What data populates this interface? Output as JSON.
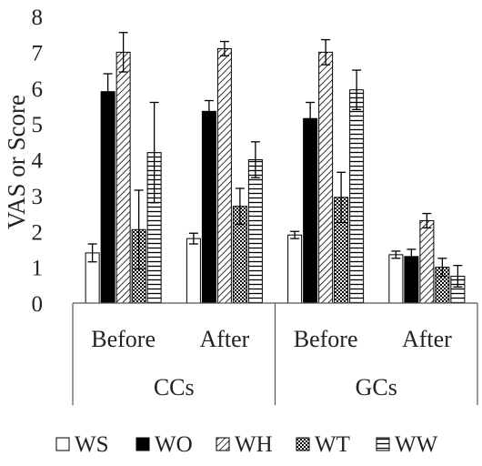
{
  "chart_data": {
    "type": "bar",
    "ylabel": "VAS or Score",
    "ylim": [
      0,
      8
    ],
    "yticks": [
      0,
      1,
      2,
      3,
      4,
      5,
      6,
      7,
      8
    ],
    "grid": false,
    "legend_position": "bottom",
    "groups": [
      {
        "label": "CCs",
        "categories": [
          "Before",
          "After"
        ]
      },
      {
        "label": "GCs",
        "categories": [
          "Before",
          "After"
        ]
      }
    ],
    "categories": [
      "Before",
      "After",
      "Before",
      "After"
    ],
    "series": [
      {
        "name": "WS",
        "pattern": "white",
        "values": [
          1.4,
          1.8,
          1.9,
          1.35
        ],
        "errors": [
          0.25,
          0.15,
          0.1,
          0.1
        ]
      },
      {
        "name": "WO",
        "pattern": "black",
        "values": [
          5.9,
          5.35,
          5.15,
          1.3
        ],
        "errors": [
          0.5,
          0.3,
          0.45,
          0.2
        ]
      },
      {
        "name": "WH",
        "pattern": "diagonal",
        "values": [
          7.0,
          7.1,
          7.0,
          2.3
        ],
        "errors": [
          0.55,
          0.2,
          0.35,
          0.2
        ]
      },
      {
        "name": "WT",
        "pattern": "crosshatch",
        "values": [
          2.05,
          2.7,
          2.95,
          1.0
        ],
        "errors": [
          1.1,
          0.5,
          0.7,
          0.25
        ]
      },
      {
        "name": "WW",
        "pattern": "horizontal",
        "values": [
          4.2,
          4.0,
          5.95,
          0.75
        ],
        "errors": [
          1.4,
          0.5,
          0.55,
          0.3
        ]
      }
    ],
    "colors": {
      "stroke": "#000000",
      "fill_white": "#ffffff",
      "fill_black": "#000000",
      "axis": "#555555"
    }
  }
}
